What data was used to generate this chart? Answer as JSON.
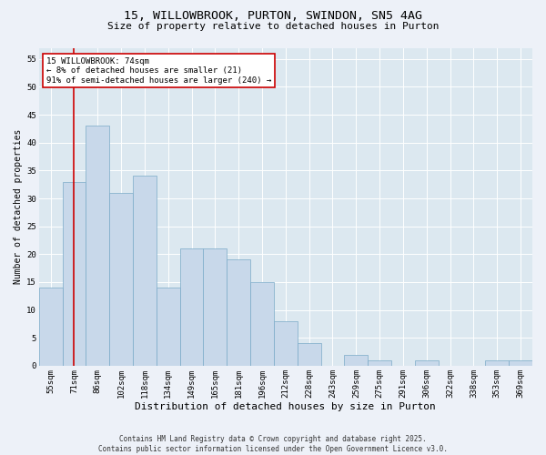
{
  "title1": "15, WILLOWBROOK, PURTON, SWINDON, SN5 4AG",
  "title2": "Size of property relative to detached houses in Purton",
  "xlabel": "Distribution of detached houses by size in Purton",
  "ylabel": "Number of detached properties",
  "categories": [
    "55sqm",
    "71sqm",
    "86sqm",
    "102sqm",
    "118sqm",
    "134sqm",
    "149sqm",
    "165sqm",
    "181sqm",
    "196sqm",
    "212sqm",
    "228sqm",
    "243sqm",
    "259sqm",
    "275sqm",
    "291sqm",
    "306sqm",
    "322sqm",
    "338sqm",
    "353sqm",
    "369sqm"
  ],
  "values": [
    14,
    33,
    43,
    31,
    34,
    14,
    21,
    21,
    19,
    15,
    8,
    4,
    0,
    2,
    1,
    0,
    1,
    0,
    0,
    1,
    1
  ],
  "bar_color": "#c8d8ea",
  "bar_edge_color": "#7aaac8",
  "vline_color": "#cc0000",
  "vline_x": 1.0,
  "annotation_line1": "15 WILLOWBROOK: 74sqm",
  "annotation_line2": "← 8% of detached houses are smaller (21)",
  "annotation_line3": "91% of semi-detached houses are larger (240) →",
  "annotation_box_edgecolor": "#cc0000",
  "ylim": [
    0,
    57
  ],
  "yticks": [
    0,
    5,
    10,
    15,
    20,
    25,
    30,
    35,
    40,
    45,
    50,
    55
  ],
  "footer": "Contains HM Land Registry data © Crown copyright and database right 2025.\nContains public sector information licensed under the Open Government Licence v3.0.",
  "fig_bg_color": "#edf1f8",
  "plot_bg_color": "#dce8f0",
  "title1_fontsize": 9.5,
  "title2_fontsize": 8,
  "ylabel_fontsize": 7,
  "xlabel_fontsize": 8,
  "tick_fontsize": 6.5,
  "annot_fontsize": 6.5,
  "footer_fontsize": 5.5
}
